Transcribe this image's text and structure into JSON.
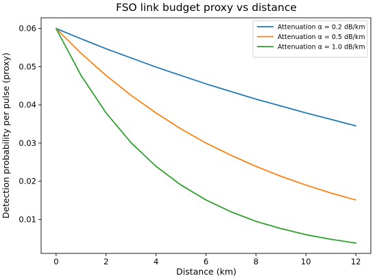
{
  "chart_data": {
    "type": "line",
    "title": "FSO link budget proxy vs distance",
    "xlabel": "Distance (km)",
    "ylabel": "Detection probability per pulse (proxy)",
    "xlim": [
      -0.6,
      12.6
    ],
    "ylim": [
      0.0011,
      0.0628
    ],
    "xticks": [
      0,
      2,
      4,
      6,
      8,
      10,
      12
    ],
    "xtick_labels": [
      "0",
      "2",
      "4",
      "6",
      "8",
      "10",
      "12"
    ],
    "yticks": [
      0.01,
      0.02,
      0.03,
      0.04,
      0.05,
      0.06
    ],
    "ytick_labels": [
      "0.01",
      "0.02",
      "0.03",
      "0.04",
      "0.05",
      "0.06"
    ],
    "grid": false,
    "legend_position": "top-right",
    "x": [
      0,
      1,
      2,
      3,
      4,
      5,
      6,
      7,
      8,
      9,
      10,
      11,
      12
    ],
    "series": [
      {
        "name": "Attenuation α = 0.2 dB/km",
        "color": "#1f77b4",
        "values": [
          0.06,
          0.0573,
          0.0547,
          0.0523,
          0.0499,
          0.0477,
          0.0455,
          0.0435,
          0.0415,
          0.0397,
          0.0379,
          0.0362,
          0.0345
        ]
      },
      {
        "name": "Attenuation α = 0.5 dB/km",
        "color": "#ff7f0e",
        "values": [
          0.06,
          0.0535,
          0.0477,
          0.0425,
          0.0379,
          0.0337,
          0.03,
          0.0268,
          0.0239,
          0.0213,
          0.019,
          0.0169,
          0.0151
        ]
      },
      {
        "name": "Attenuation α = 1.0 dB/km",
        "color": "#2ca02c",
        "values": [
          0.06,
          0.0477,
          0.0379,
          0.0301,
          0.0239,
          0.019,
          0.0151,
          0.012,
          0.0095,
          0.0076,
          0.006,
          0.0048,
          0.0038
        ]
      }
    ]
  }
}
